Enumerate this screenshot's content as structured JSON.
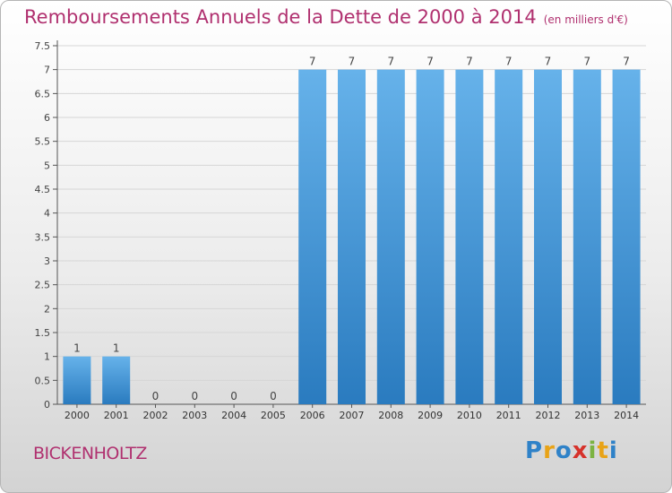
{
  "page": {
    "commune": "BICKENHOLTZ",
    "logo_text": "Proxiti"
  },
  "colors": {
    "title": "#b0306f",
    "bar_light": "#66b2ea",
    "bar_dark": "#2a7bbf",
    "grid": "#d6d6d6",
    "axis": "#555555"
  },
  "chart_data": {
    "type": "bar",
    "title": "Remboursements Annuels de la Dette de 2000 à 2014",
    "unit_note": "(en milliers d'€)",
    "categories": [
      "2000",
      "2001",
      "2002",
      "2003",
      "2004",
      "2005",
      "2006",
      "2007",
      "2008",
      "2009",
      "2010",
      "2011",
      "2012",
      "2013",
      "2014"
    ],
    "values": [
      1,
      1,
      0,
      0,
      0,
      0,
      7,
      7,
      7,
      7,
      7,
      7,
      7,
      7,
      7
    ],
    "data_labels": [
      "1",
      "1",
      "0",
      "0",
      "0",
      "0",
      "7",
      "7",
      "7",
      "7",
      "7",
      "7",
      "7",
      "7",
      "7"
    ],
    "ylim": [
      0,
      7.5
    ],
    "yticks": [
      "0",
      "0.5",
      "1",
      "1.5",
      "2",
      "2.5",
      "3",
      "3.5",
      "4",
      "4.5",
      "5",
      "5.5",
      "6",
      "6.5",
      "7",
      "7.5"
    ],
    "ytick_values": [
      0,
      0.5,
      1,
      1.5,
      2,
      2.5,
      3,
      3.5,
      4,
      4.5,
      5,
      5.5,
      6,
      6.5,
      7,
      7.5
    ],
    "grid": true,
    "legend": "none"
  }
}
